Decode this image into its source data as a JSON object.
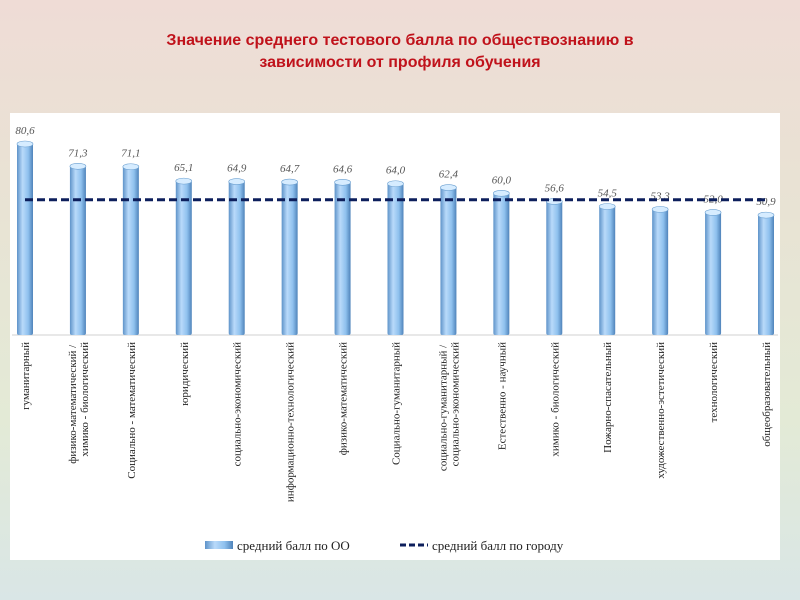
{
  "title_line1": "Значение среднего тестового балла по обществознанию в",
  "title_line2": "зависимости от профиля обучения",
  "chart_data": {
    "type": "bar",
    "title": "Значение среднего тестового балла по обществознанию в зависимости от профиля обучения",
    "categories": [
      "гуманитарный",
      "физико-математический / химико - биологический",
      "Социально - математический",
      "юридический",
      "социально-экономический",
      "информационно-технологический",
      "физико-математический",
      "Социально-гуманитарный",
      "социально-гуманитарный / социально-экономический",
      "Естественно - научный",
      "химико - биологический",
      "Пожарно-спасательный",
      "художественно-эстетический",
      "технологический",
      "общеобразовательный"
    ],
    "series": [
      {
        "name": "средний балл по ОО",
        "type": "bar",
        "color": "#8fc1ee",
        "values": [
          80.6,
          71.3,
          71.1,
          65.1,
          64.9,
          64.7,
          64.6,
          64.0,
          62.4,
          60.0,
          56.6,
          54.5,
          53.3,
          52.0,
          50.9
        ],
        "labels": [
          "80,6",
          "71,3",
          "71,1",
          "65,1",
          "64,9",
          "64,7",
          "64,6",
          "64,0",
          "62,4",
          "60,0",
          "56,6",
          "54,5",
          "53,3",
          "52,0",
          "50,9"
        ]
      },
      {
        "name": "средний балл по городу",
        "type": "line",
        "style": "dashed",
        "color": "#0d1f5c",
        "value": 56.5
      }
    ],
    "ylim": [
      0,
      82
    ],
    "grid": false,
    "legend": "bottom"
  }
}
